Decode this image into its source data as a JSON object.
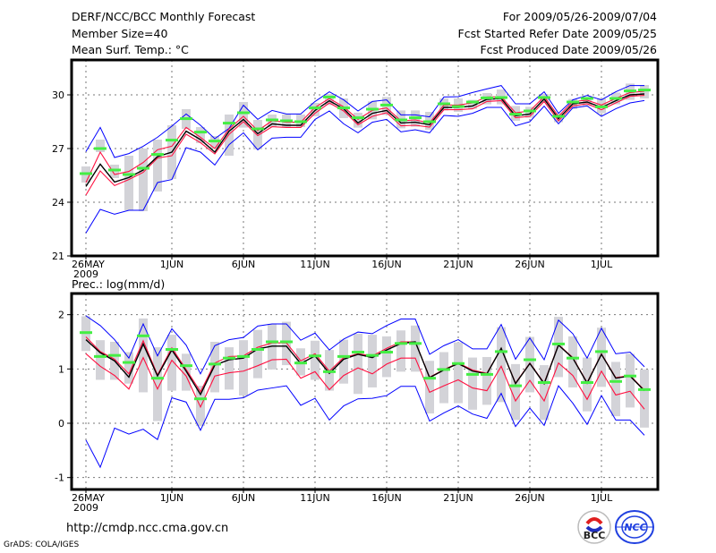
{
  "header": {
    "title": "DERF/NCC/BCC Monthly Forecast",
    "member_size": "Member Size=40",
    "variable": "Mean Surf. Temp.: °C",
    "period": "For 2009/05/26-2009/07/04",
    "start_date": "Fcst Started Refer Date 2009/05/25",
    "produced_date": "Fcst Produced Date 2009/05/26"
  },
  "footer": {
    "url": "http://cmdp.ncc.cma.gov.cn",
    "credit": "GrADS: COLA/IGES",
    "logos": [
      "BCC",
      "NCC"
    ]
  },
  "colors": {
    "envelope": "#0000ff",
    "spread": "#ff1040",
    "mean": "#000000",
    "marker": "#44ee44",
    "box": "#d3d3d8"
  },
  "chart_data": [
    {
      "type": "line",
      "title": "Mean Surf. Temp.: °C",
      "x_start": "2009-05-26",
      "days": 40,
      "xticks": [
        {
          "day": 0,
          "label": "26MAY",
          "sub": "2009"
        },
        {
          "day": 6,
          "label": "1JUN"
        },
        {
          "day": 11,
          "label": "6JUN"
        },
        {
          "day": 16,
          "label": "11JUN"
        },
        {
          "day": 21,
          "label": "16JUN"
        },
        {
          "day": 26,
          "label": "21JUN"
        },
        {
          "day": 31,
          "label": "26JUN"
        },
        {
          "day": 36,
          "label": "1JUL"
        }
      ],
      "ylim": [
        21,
        31.9
      ],
      "yticks": [
        21,
        24,
        27,
        30
      ],
      "grid": true,
      "series": [
        {
          "name": "ensemble mean",
          "role": "mean",
          "values": [
            24.88,
            26.13,
            25.13,
            25.38,
            25.8,
            26.55,
            26.8,
            27.97,
            27.5,
            26.8,
            27.97,
            28.63,
            27.83,
            28.38,
            28.3,
            28.3,
            29.13,
            29.67,
            29.22,
            28.43,
            28.97,
            29.13,
            28.43,
            28.47,
            28.33,
            29.3,
            29.3,
            29.38,
            29.75,
            29.8,
            28.83,
            28.93,
            29.77,
            28.67,
            29.5,
            29.6,
            29.3,
            29.67,
            30.0,
            30.05
          ]
        },
        {
          "name": "upper spread",
          "role": "spread",
          "values": [
            25.1,
            26.8,
            25.55,
            25.72,
            26.22,
            26.93,
            27.13,
            28.18,
            27.63,
            27.0,
            28.1,
            28.8,
            28.0,
            28.55,
            28.47,
            28.47,
            29.3,
            29.8,
            29.33,
            28.63,
            29.13,
            29.27,
            28.55,
            28.6,
            28.43,
            29.43,
            29.43,
            29.55,
            29.88,
            29.9,
            29.0,
            29.1,
            29.9,
            28.8,
            29.63,
            29.7,
            29.43,
            29.8,
            30.13,
            30.2
          ]
        },
        {
          "name": "lower spread",
          "role": "spread",
          "values": [
            24.4,
            25.75,
            24.93,
            25.27,
            25.67,
            26.47,
            26.6,
            27.8,
            27.33,
            26.7,
            27.8,
            28.5,
            27.72,
            28.22,
            28.18,
            28.18,
            28.97,
            29.55,
            29.1,
            28.33,
            28.8,
            29.0,
            28.27,
            28.3,
            28.2,
            29.17,
            29.17,
            29.22,
            29.63,
            29.68,
            28.72,
            28.8,
            29.63,
            28.55,
            29.38,
            29.5,
            29.17,
            29.55,
            29.92,
            29.97
          ]
        },
        {
          "name": "maximum",
          "role": "envelope",
          "values": [
            26.83,
            28.18,
            26.5,
            26.72,
            27.13,
            27.63,
            28.25,
            28.93,
            28.3,
            27.55,
            28.13,
            29.42,
            28.63,
            29.13,
            28.93,
            28.93,
            29.63,
            30.17,
            29.72,
            29.1,
            29.63,
            29.72,
            28.88,
            28.88,
            28.77,
            29.88,
            29.9,
            30.13,
            30.33,
            30.52,
            29.5,
            29.5,
            30.17,
            28.97,
            29.72,
            29.97,
            29.72,
            30.17,
            30.52,
            30.52
          ]
        },
        {
          "name": "minimum",
          "role": "envelope",
          "values": [
            22.28,
            23.6,
            23.33,
            23.55,
            23.55,
            25.1,
            25.27,
            27.05,
            26.8,
            26.08,
            27.22,
            27.88,
            26.93,
            27.58,
            27.63,
            27.63,
            28.63,
            29.1,
            28.38,
            27.88,
            28.47,
            28.63,
            27.93,
            28.05,
            27.88,
            28.85,
            28.8,
            28.97,
            29.3,
            29.3,
            28.27,
            28.5,
            29.37,
            28.38,
            29.27,
            29.38,
            28.8,
            29.22,
            29.55,
            29.68
          ]
        },
        {
          "name": "marker",
          "role": "marker",
          "values": [
            25.6,
            27.0,
            25.8,
            25.55,
            25.9,
            26.67,
            27.47,
            28.67,
            27.92,
            27.42,
            28.42,
            29.0,
            28.1,
            28.6,
            28.55,
            28.5,
            29.27,
            29.88,
            29.27,
            28.72,
            29.2,
            29.43,
            28.6,
            28.72,
            28.5,
            29.5,
            29.35,
            29.6,
            29.83,
            29.85,
            28.92,
            29.1,
            29.85,
            28.8,
            29.6,
            29.8,
            29.33,
            29.8,
            30.22,
            30.27
          ]
        },
        {
          "name": "box high",
          "role": "box_high",
          "values": [
            26.0,
            27.5,
            26.1,
            26.6,
            27.0,
            27.5,
            28.3,
            29.2,
            28.2,
            27.7,
            28.9,
            29.6,
            28.6,
            28.9,
            28.9,
            28.9,
            29.55,
            30.05,
            29.8,
            29.0,
            29.63,
            29.88,
            29.13,
            29.13,
            29.05,
            29.8,
            29.8,
            29.72,
            30.1,
            30.3,
            29.38,
            29.33,
            30.05,
            28.97,
            29.77,
            29.88,
            29.8,
            30.13,
            30.63,
            30.55
          ]
        },
        {
          "name": "box low",
          "role": "box_low",
          "values": [
            25.1,
            26.8,
            25.35,
            23.55,
            23.5,
            24.6,
            25.3,
            28.1,
            27.3,
            27.0,
            26.6,
            28.17,
            26.95,
            28.2,
            28.2,
            28.2,
            28.8,
            29.43,
            28.7,
            28.17,
            28.63,
            28.88,
            28.13,
            28.22,
            28.05,
            29.13,
            29.05,
            29.22,
            29.47,
            29.47,
            28.55,
            28.72,
            29.55,
            28.47,
            29.22,
            29.38,
            28.97,
            29.47,
            29.72,
            29.8
          ]
        }
      ]
    },
    {
      "type": "line",
      "title": "Prec.: log(mm/d)",
      "x_start": "2009-05-26",
      "days": 40,
      "xticks": [
        {
          "day": 0,
          "label": "26MAY",
          "sub": "2009"
        },
        {
          "day": 6,
          "label": "1JUN"
        },
        {
          "day": 11,
          "label": "6JUN"
        },
        {
          "day": 16,
          "label": "11JUN"
        },
        {
          "day": 21,
          "label": "16JUN"
        },
        {
          "day": 26,
          "label": "21JUN"
        },
        {
          "day": 31,
          "label": "26JUN"
        },
        {
          "day": 36,
          "label": "1JUL"
        }
      ],
      "ylim": [
        -1.22,
        2.4
      ],
      "yticks": [
        -1,
        0,
        1,
        2
      ],
      "grid": true,
      "series": [
        {
          "name": "ensemble mean",
          "role": "mean",
          "values": [
            1.54,
            1.3,
            1.15,
            0.85,
            1.46,
            0.87,
            1.35,
            0.96,
            0.53,
            1.07,
            1.17,
            1.2,
            1.37,
            1.42,
            1.42,
            1.1,
            1.24,
            0.92,
            1.18,
            1.27,
            1.21,
            1.35,
            1.47,
            1.5,
            0.84,
            0.98,
            1.1,
            0.96,
            0.91,
            1.38,
            0.73,
            1.1,
            0.73,
            1.44,
            1.2,
            0.74,
            1.27,
            0.83,
            0.87,
            0.6
          ]
        },
        {
          "name": "upper spread",
          "role": "spread",
          "values": [
            1.59,
            1.32,
            1.18,
            0.91,
            1.52,
            0.89,
            1.39,
            0.99,
            0.58,
            1.11,
            1.23,
            1.24,
            1.4,
            1.48,
            1.48,
            1.15,
            1.28,
            0.96,
            1.21,
            1.28,
            1.24,
            1.38,
            1.5,
            1.5,
            0.85,
            0.99,
            1.11,
            0.98,
            0.92,
            1.38,
            0.74,
            1.11,
            0.74,
            1.45,
            1.21,
            0.75,
            1.28,
            0.84,
            0.88,
            0.61
          ]
        },
        {
          "name": "lower spread",
          "role": "spread",
          "values": [
            1.28,
            1.05,
            0.88,
            0.63,
            1.21,
            0.63,
            1.16,
            0.87,
            0.3,
            0.87,
            0.93,
            0.96,
            1.06,
            1.17,
            1.18,
            0.83,
            0.95,
            0.62,
            0.88,
            1.02,
            0.91,
            1.09,
            1.2,
            1.2,
            0.57,
            0.69,
            0.8,
            0.65,
            0.6,
            1.05,
            0.41,
            0.79,
            0.41,
            1.11,
            0.88,
            0.44,
            0.96,
            0.52,
            0.59,
            0.26
          ]
        },
        {
          "name": "maximum",
          "role": "envelope",
          "values": [
            1.98,
            1.8,
            1.54,
            1.2,
            1.83,
            1.24,
            1.74,
            1.44,
            0.91,
            1.43,
            1.54,
            1.58,
            1.79,
            1.83,
            1.83,
            1.53,
            1.66,
            1.35,
            1.55,
            1.68,
            1.65,
            1.8,
            1.92,
            1.92,
            1.27,
            1.43,
            1.54,
            1.37,
            1.37,
            1.82,
            1.18,
            1.57,
            1.17,
            1.9,
            1.65,
            1.2,
            1.75,
            1.28,
            1.31,
            1.04
          ]
        },
        {
          "name": "minimum",
          "role": "envelope",
          "values": [
            -0.31,
            -0.81,
            -0.09,
            -0.2,
            -0.11,
            -0.3,
            0.47,
            0.39,
            -0.13,
            0.44,
            0.44,
            0.47,
            0.61,
            0.65,
            0.69,
            0.33,
            0.46,
            0.06,
            0.32,
            0.45,
            0.46,
            0.51,
            0.68,
            0.68,
            0.04,
            0.19,
            0.32,
            0.17,
            0.09,
            0.55,
            -0.06,
            0.28,
            -0.04,
            0.69,
            0.37,
            -0.02,
            0.51,
            0.06,
            0.06,
            -0.22
          ]
        },
        {
          "name": "marker",
          "role": "marker",
          "values": [
            1.67,
            1.23,
            1.25,
            1.12,
            1.61,
            0.83,
            1.36,
            1.06,
            0.45,
            1.09,
            1.2,
            1.23,
            1.36,
            1.5,
            1.5,
            1.11,
            1.24,
            0.95,
            1.23,
            1.31,
            1.25,
            1.31,
            1.47,
            1.47,
            0.83,
            0.99,
            1.1,
            0.9,
            0.9,
            1.32,
            0.69,
            1.17,
            0.75,
            1.46,
            1.2,
            0.75,
            1.32,
            0.77,
            0.87,
            0.62
          ]
        },
        {
          "name": "box high",
          "role": "box_high",
          "values": [
            1.97,
            1.53,
            1.5,
            1.31,
            1.93,
            1.4,
            1.63,
            1.28,
            0.69,
            1.5,
            1.4,
            1.53,
            1.72,
            1.83,
            1.87,
            1.38,
            1.52,
            1.35,
            1.54,
            1.65,
            1.63,
            1.6,
            1.71,
            1.8,
            1.15,
            1.31,
            1.49,
            1.21,
            1.22,
            1.77,
            1.09,
            1.59,
            1.07,
            1.96,
            1.6,
            1.21,
            1.76,
            1.13,
            1.28,
            0.99
          ]
        },
        {
          "name": "box low",
          "role": "box_low",
          "values": [
            1.33,
            0.8,
            0.8,
            0.73,
            0.57,
            0.04,
            0.6,
            0.6,
            -0.05,
            0.57,
            0.62,
            0.51,
            0.83,
            0.99,
            1.07,
            0.88,
            0.8,
            0.6,
            0.73,
            0.54,
            0.66,
            0.85,
            0.95,
            0.95,
            0.18,
            0.37,
            0.37,
            0.25,
            0.34,
            0.39,
            0.06,
            0.57,
            0.06,
            0.85,
            0.66,
            0.22,
            0.67,
            0.13,
            0.29,
            -0.08
          ]
        }
      ]
    }
  ]
}
